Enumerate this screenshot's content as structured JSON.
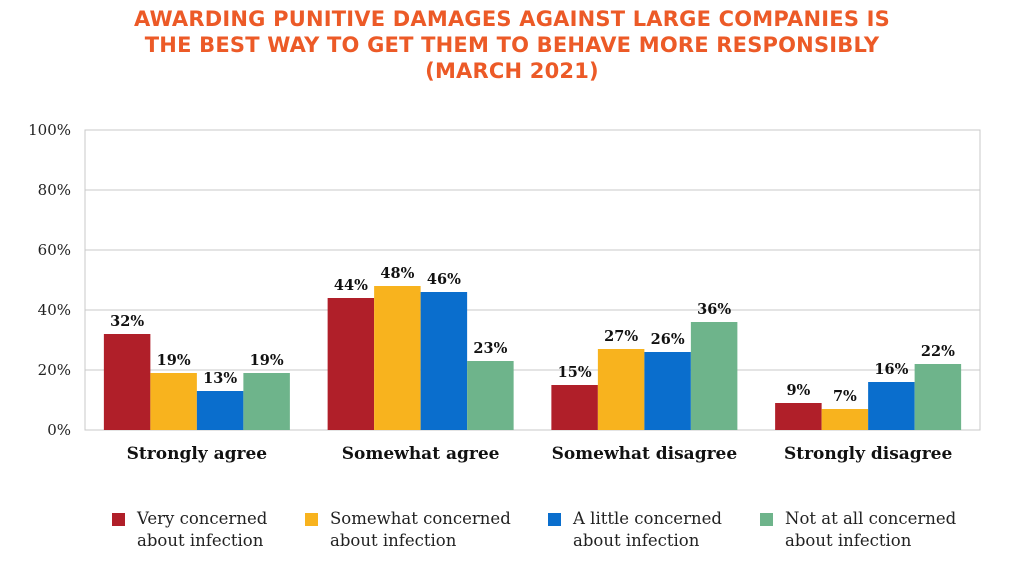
{
  "title_lines": [
    "AWARDING PUNITIVE DAMAGES AGAINST LARGE COMPANIES IS",
    "THE BEST WAY TO GET THEM TO BEHAVE MORE RESPONSIBLY",
    "(MARCH 2021)"
  ],
  "colors": {
    "title": "#ec5a27",
    "series": [
      "#b01f29",
      "#f8b31e",
      "#0a6ecd",
      "#6eb48b"
    ]
  },
  "chart_data": {
    "type": "bar",
    "title": "AWARDING PUNITIVE DAMAGES AGAINST LARGE COMPANIES IS THE BEST WAY TO GET THEM TO BEHAVE MORE RESPONSIBLY (MARCH 2021)",
    "categories": [
      "Strongly agree",
      "Somewhat agree",
      "Somewhat disagree",
      "Strongly disagree"
    ],
    "series": [
      {
        "name": "Very concerned about infection",
        "values": [
          32,
          44,
          15,
          9
        ],
        "labels": [
          "32%",
          "44%",
          "15%",
          "9%"
        ]
      },
      {
        "name": "Somewhat concerned about infection",
        "values": [
          19,
          48,
          27,
          7
        ],
        "labels": [
          "19%",
          "48%",
          "27%",
          "7%"
        ]
      },
      {
        "name": "A little concerned about infection",
        "values": [
          13,
          46,
          26,
          16
        ],
        "labels": [
          "13%",
          "46%",
          "26%",
          "16%"
        ]
      },
      {
        "name": "Not at all concerned about infection",
        "values": [
          19,
          23,
          36,
          22
        ],
        "labels": [
          "19%",
          "23%",
          "36%",
          "22%"
        ]
      }
    ],
    "y_ticks": [
      "0%",
      "20%",
      "40%",
      "60%",
      "80%",
      "100%"
    ],
    "ylim": [
      0,
      100
    ],
    "grid": true,
    "legend_position": "bottom"
  },
  "legend": [
    {
      "line1": "Very concerned",
      "line2": "about infection"
    },
    {
      "line1": "Somewhat concerned",
      "line2": "about infection"
    },
    {
      "line1": "A little concerned",
      "line2": "about infection"
    },
    {
      "line1": "Not at all concerned",
      "line2": "about infection"
    }
  ]
}
